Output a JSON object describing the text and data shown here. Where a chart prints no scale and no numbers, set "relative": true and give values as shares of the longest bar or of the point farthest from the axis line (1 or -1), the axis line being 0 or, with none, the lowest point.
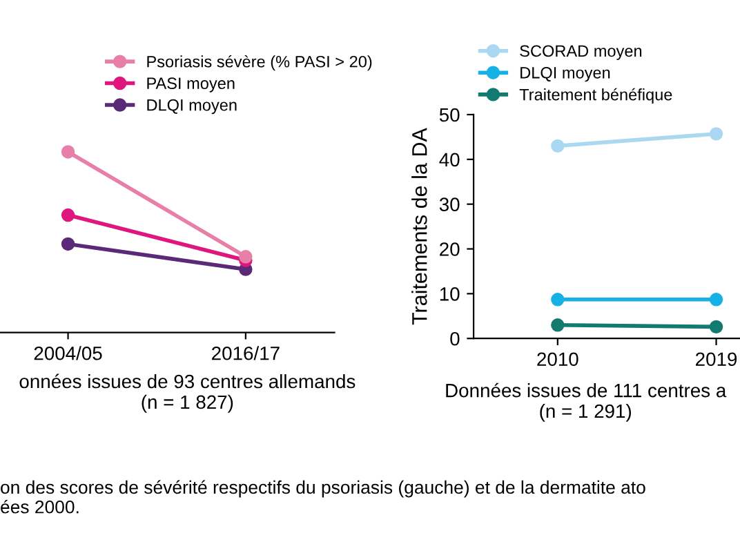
{
  "chart_data": [
    {
      "type": "line",
      "relative": true,
      "categories": [
        "2004/05",
        "2016/17"
      ],
      "xlabel": "onnées issues de 93 centres allemands\n(n = 1 827)",
      "marker": "circle",
      "legend": "top",
      "grid": false,
      "series": [
        {
          "name": "Psoriasis sévère (% PASI > 20)",
          "color": "#e77fa8",
          "values": [
            1,
            0.42
          ]
        },
        {
          "name": "PASI moyen",
          "color": "#e0167f",
          "values": [
            0.65,
            0.4
          ]
        },
        {
          "name": "DLQI moyen",
          "color": "#5a2a78",
          "values": [
            0.49,
            0.35
          ]
        }
      ],
      "annotations": [
        "on des scores de sévérité respectifs du psoriasis (gauche) et de la dermatite ato\nées 2000."
      ]
    },
    {
      "type": "line",
      "categories": [
        "2010",
        "2019"
      ],
      "xlabel": "Données issues de 111 centres a\n(n = 1 291)",
      "ylabel": "Traitements de la DA",
      "ylim": [
        0,
        50
      ],
      "yticks": [
        0,
        10,
        20,
        30,
        40,
        50
      ],
      "marker": "circle",
      "legend": "top",
      "grid": false,
      "series": [
        {
          "name": "SCORAD moyen",
          "color": "#aad8f0",
          "values": [
            43,
            45.7
          ]
        },
        {
          "name": "DLQI moyen",
          "color": "#17b1e6",
          "values": [
            8.7,
            8.7
          ]
        },
        {
          "name": "Traitement bénéfique",
          "color": "#137a6f",
          "values": [
            3.0,
            2.6
          ]
        }
      ]
    }
  ]
}
